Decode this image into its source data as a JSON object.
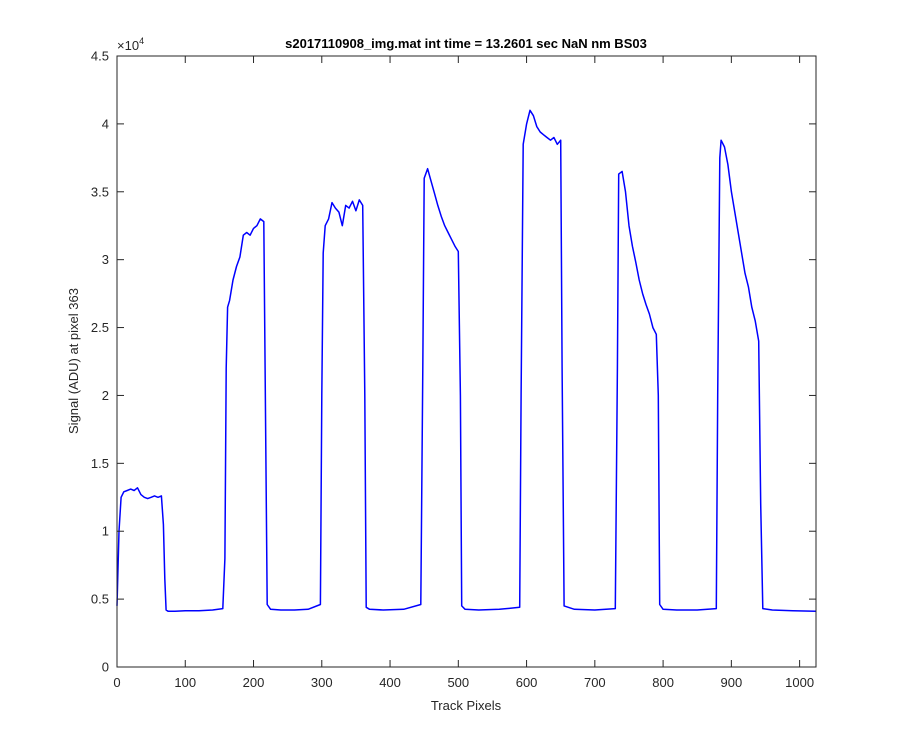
{
  "chart_data": {
    "type": "line",
    "title": "s2017110908_img.mat int time = 13.2601 sec  NaN nm BS03",
    "xlabel": "Track Pixels",
    "ylabel": "Signal (ADU) at pixel 363",
    "xlim": [
      0,
      1024
    ],
    "ylim": [
      0,
      45000
    ],
    "xticks": [
      0,
      100,
      200,
      300,
      400,
      500,
      600,
      700,
      800,
      900,
      1000
    ],
    "yticks": [
      0,
      0.5,
      1,
      1.5,
      2,
      2.5,
      3,
      3.5,
      4,
      4.5
    ],
    "y_exponent_label": "×10",
    "y_exponent_power": "4",
    "grid": false,
    "series": [
      {
        "color": "#0000ff",
        "x": [
          0,
          3,
          6,
          10,
          15,
          20,
          25,
          30,
          35,
          40,
          45,
          50,
          55,
          60,
          65,
          68,
          70,
          72,
          75,
          85,
          100,
          120,
          140,
          155,
          158,
          160,
          162,
          165,
          170,
          175,
          180,
          185,
          190,
          195,
          200,
          205,
          210,
          215,
          217,
          220,
          225,
          240,
          260,
          280,
          298,
          300,
          302,
          305,
          310,
          315,
          320,
          325,
          330,
          335,
          340,
          345,
          350,
          355,
          360,
          363,
          365,
          370,
          390,
          420,
          445,
          448,
          450,
          455,
          460,
          465,
          470,
          475,
          480,
          485,
          490,
          495,
          500,
          503,
          505,
          510,
          530,
          560,
          590,
          592,
          595,
          600,
          605,
          610,
          615,
          620,
          625,
          630,
          635,
          640,
          645,
          650,
          652,
          655,
          670,
          700,
          730,
          733,
          735,
          740,
          745,
          750,
          755,
          760,
          765,
          770,
          775,
          780,
          785,
          790,
          793,
          795,
          800,
          820,
          850,
          878,
          880,
          883,
          885,
          890,
          895,
          900,
          905,
          910,
          915,
          920,
          925,
          930,
          935,
          940,
          943,
          946,
          960,
          990,
          1024
        ],
        "y": [
          4500,
          10000,
          12500,
          12900,
          13000,
          13100,
          13000,
          13200,
          12700,
          12500,
          12400,
          12500,
          12600,
          12500,
          12600,
          10500,
          6500,
          4200,
          4100,
          4100,
          4150,
          4150,
          4200,
          4300,
          8000,
          22000,
          26500,
          27000,
          28500,
          29500,
          30200,
          31800,
          32000,
          31800,
          32300,
          32500,
          33000,
          32800,
          22000,
          4600,
          4250,
          4200,
          4200,
          4250,
          4600,
          20000,
          30500,
          32500,
          33000,
          34200,
          33800,
          33500,
          32500,
          34000,
          33800,
          34300,
          33600,
          34400,
          34000,
          20000,
          4400,
          4250,
          4200,
          4250,
          4600,
          22000,
          36000,
          36700,
          35800,
          34900,
          34000,
          33200,
          32500,
          32000,
          31500,
          31000,
          30600,
          20000,
          4500,
          4250,
          4200,
          4250,
          4400,
          20000,
          38500,
          40000,
          41000,
          40600,
          39800,
          39400,
          39200,
          39000,
          38800,
          39000,
          38500,
          38800,
          22000,
          4500,
          4250,
          4200,
          4300,
          22000,
          36300,
          36500,
          35000,
          32500,
          31000,
          29800,
          28500,
          27500,
          26700,
          26000,
          25000,
          24500,
          20000,
          4600,
          4250,
          4200,
          4200,
          4300,
          20000,
          37500,
          38800,
          38300,
          37000,
          35000,
          33500,
          32000,
          30500,
          29000,
          28000,
          26500,
          25500,
          24000,
          12000,
          4300,
          4200,
          4150,
          4100
        ]
      }
    ]
  }
}
